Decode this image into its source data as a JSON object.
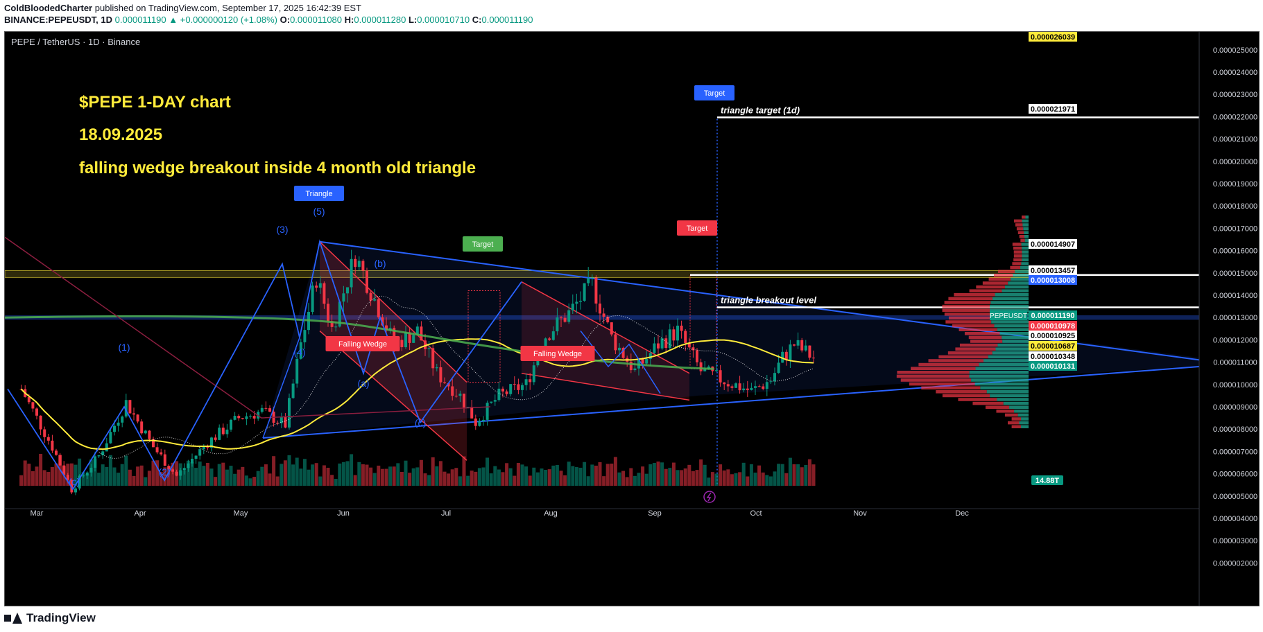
{
  "header": {
    "author": "ColdBloodedCharter",
    "published": "published on TradingView.com, September 17, 2025 16:42:39 EST",
    "symbol": "BINANCE:PEPEUSDT, 1D",
    "price": "0.000011190",
    "change": "▲ +0.000000120 (+1.08%)",
    "o_label": "O:",
    "o": "0.000011080",
    "h_label": "H:",
    "h": "0.000011280",
    "l_label": "L:",
    "l": "0.000010710",
    "c_label": "C:",
    "c": "0.000011190"
  },
  "chart_title": "PEPE / TetherUS · 1D · Binance",
  "annotations": {
    "line1": "$PEPE    1-DAY chart",
    "line2": "18.09.2025",
    "line3": "falling wedge breakout inside 4 month old triangle"
  },
  "footer": {
    "brand": "TradingView"
  },
  "colors": {
    "background": "#000000",
    "up": "#089981",
    "down": "#f23645",
    "pattern_blue": "#2962ff",
    "pattern_red": "#f23645",
    "ma_yellow": "#ffeb3b",
    "ma_green": "#4caf50",
    "text_yellow": "#ffeb3b",
    "axis_text": "#d1d4dc"
  },
  "chart_data": {
    "type": "candlestick",
    "title": "PEPE / TetherUS · 1D · Binance",
    "x_axis": {
      "ticks": [
        "Mar",
        "Apr",
        "May",
        "Jun",
        "Jul",
        "Aug",
        "Sep",
        "Oct",
        "Nov",
        "Dec"
      ]
    },
    "y_axis": {
      "range": [
        1.5e-06,
        2.65e-05
      ],
      "ticks": [
        "0.000025000",
        "0.000024000",
        "0.000023000",
        "0.000022000",
        "0.000021000",
        "0.000020000",
        "0.000019000",
        "0.000018000",
        "0.000017000",
        "0.000016000",
        "0.000015000",
        "0.000014000",
        "0.000013000",
        "0.000012000",
        "0.000011000",
        "0.000010000",
        "0.000009000",
        "0.000008000",
        "0.000007000",
        "0.000006000",
        "0.000005000",
        "0.000004000",
        "0.000003000",
        "0.000002000"
      ]
    },
    "price_badges": [
      {
        "value": "0.000026039",
        "bg": "#ffeb3b",
        "fg": "#000000"
      },
      {
        "value": "0.000021971",
        "bg": "#ffffff",
        "fg": "#000000"
      },
      {
        "value": "0.000014907",
        "bg": "#ffffff",
        "fg": "#000000"
      },
      {
        "value": "0.000013457",
        "bg": "#ffffff",
        "fg": "#000000"
      },
      {
        "value": "0.000013008",
        "bg": "#2962ff",
        "fg": "#ffffff"
      },
      {
        "value": "0.000011190",
        "bg": "#089981",
        "fg": "#ffffff",
        "tag": "PEPEUSDT"
      },
      {
        "value": "0.000010978",
        "bg": "#f23645",
        "fg": "#ffffff"
      },
      {
        "value": "0.000010925",
        "bg": "#ffffff",
        "fg": "#000000"
      },
      {
        "value": "0.000010687",
        "bg": "#ffeb3b",
        "fg": "#000000"
      },
      {
        "value": "0.000010348",
        "bg": "#ffffff",
        "fg": "#000000"
      },
      {
        "value": "0.000010131",
        "bg": "#089981",
        "fg": "#ffffff"
      }
    ],
    "volume_badge": "14.88T",
    "ohlc_last": {
      "open": 1.108e-05,
      "high": 1.128e-05,
      "low": 1.071e-05,
      "close": 1.119e-05
    },
    "wave_labels": [
      "(1)",
      "(2)",
      "(3)",
      "(4)",
      "(5)",
      "(a)",
      "(b)",
      "(c)",
      "(c)"
    ],
    "pattern_labels": {
      "triangle": "Triangle",
      "falling_wedge_1": "Falling Wedge",
      "falling_wedge_2": "Falling Wedge",
      "target_green": "Target",
      "target_red": "Target",
      "target_blue": "Target"
    },
    "levels": [
      {
        "label": "triangle target (1d)",
        "value": 2.1971e-05
      },
      {
        "label": "triangle breakout level",
        "value": 1.3457e-05
      },
      {
        "label": "",
        "value": 1.4907e-05
      }
    ],
    "close_path": [
      [
        "Feb 25",
        9.8e-06
      ],
      [
        "Mar 5",
        7.2e-06
      ],
      [
        "Mar 10",
        5.3e-06
      ],
      [
        "Mar 17",
        6.8e-06
      ],
      [
        "Mar 24",
        9.2e-06
      ],
      [
        "Mar 31",
        7.2e-06
      ],
      [
        "Apr 6",
        5.9e-06
      ],
      [
        "Apr 14",
        7.4e-06
      ],
      [
        "Apr 22",
        8.5e-06
      ],
      [
        "Apr 28",
        8.8e-06
      ],
      [
        "May 4",
        8.2e-06
      ],
      [
        "May 8",
        1.18e-05
      ],
      [
        "May 12",
        1.48e-05
      ],
      [
        "May 16",
        1.25e-05
      ],
      [
        "May 22",
        1.58e-05
      ],
      [
        "May 27",
        1.38e-05
      ],
      [
        "Jun 1",
        1.18e-05
      ],
      [
        "Jun 7",
        1.24e-05
      ],
      [
        "Jun 12",
        1.05e-05
      ],
      [
        "Jun 18",
        9.5e-06
      ],
      [
        "Jun 22",
        8.3e-06
      ],
      [
        "Jun 28",
        9.5e-06
      ],
      [
        "Jul 5",
        1e-05
      ],
      [
        "Jul 10",
        1.22e-05
      ],
      [
        "Jul 16",
        1.32e-05
      ],
      [
        "Jul 22",
        1.45e-05
      ],
      [
        "Jul 27",
        1.21e-05
      ],
      [
        "Aug 2",
        1.06e-05
      ],
      [
        "Aug 8",
        1.18e-05
      ],
      [
        "Aug 13",
        1.24e-05
      ],
      [
        "Aug 19",
        1.06e-05
      ],
      [
        "Aug 26",
        1.01e-05
      ],
      [
        "Sep 1",
        9.7e-06
      ],
      [
        "Sep 6",
        1.02e-05
      ],
      [
        "Sep 9",
        1.12e-05
      ],
      [
        "Sep 12",
        1.18e-05
      ],
      [
        "Sep 17",
        1.12e-05
      ]
    ]
  }
}
